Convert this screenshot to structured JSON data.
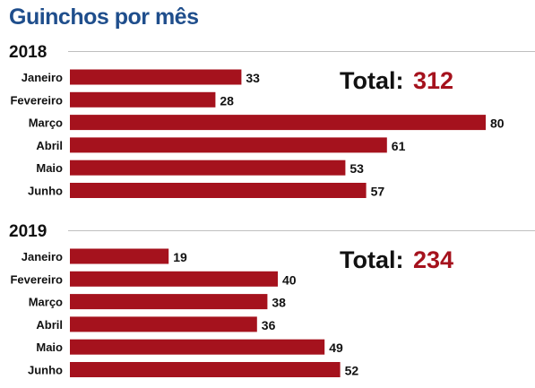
{
  "title": "Guinchos por mês",
  "colors": {
    "title": "#1f4e8c",
    "bar": "#a5121d",
    "total_value": "#a5121d",
    "text": "#111111",
    "rule": "#bfbfbf"
  },
  "chart_data": [
    {
      "type": "bar",
      "orientation": "horizontal",
      "title": "2018",
      "categories": [
        "Janeiro",
        "Fevereiro",
        "Março",
        "Abril",
        "Maio",
        "Junho"
      ],
      "values": [
        33,
        28,
        80,
        61,
        53,
        57
      ],
      "total_label": "Total:",
      "total_value": "312",
      "xlim": [
        0,
        80
      ],
      "grid": false
    },
    {
      "type": "bar",
      "orientation": "horizontal",
      "title": "2019",
      "categories": [
        "Janeiro",
        "Fevereiro",
        "Março",
        "Abril",
        "Maio",
        "Junho"
      ],
      "values": [
        19,
        40,
        38,
        36,
        49,
        52
      ],
      "total_label": "Total:",
      "total_value": "234",
      "xlim": [
        0,
        80
      ],
      "grid": false
    }
  ]
}
